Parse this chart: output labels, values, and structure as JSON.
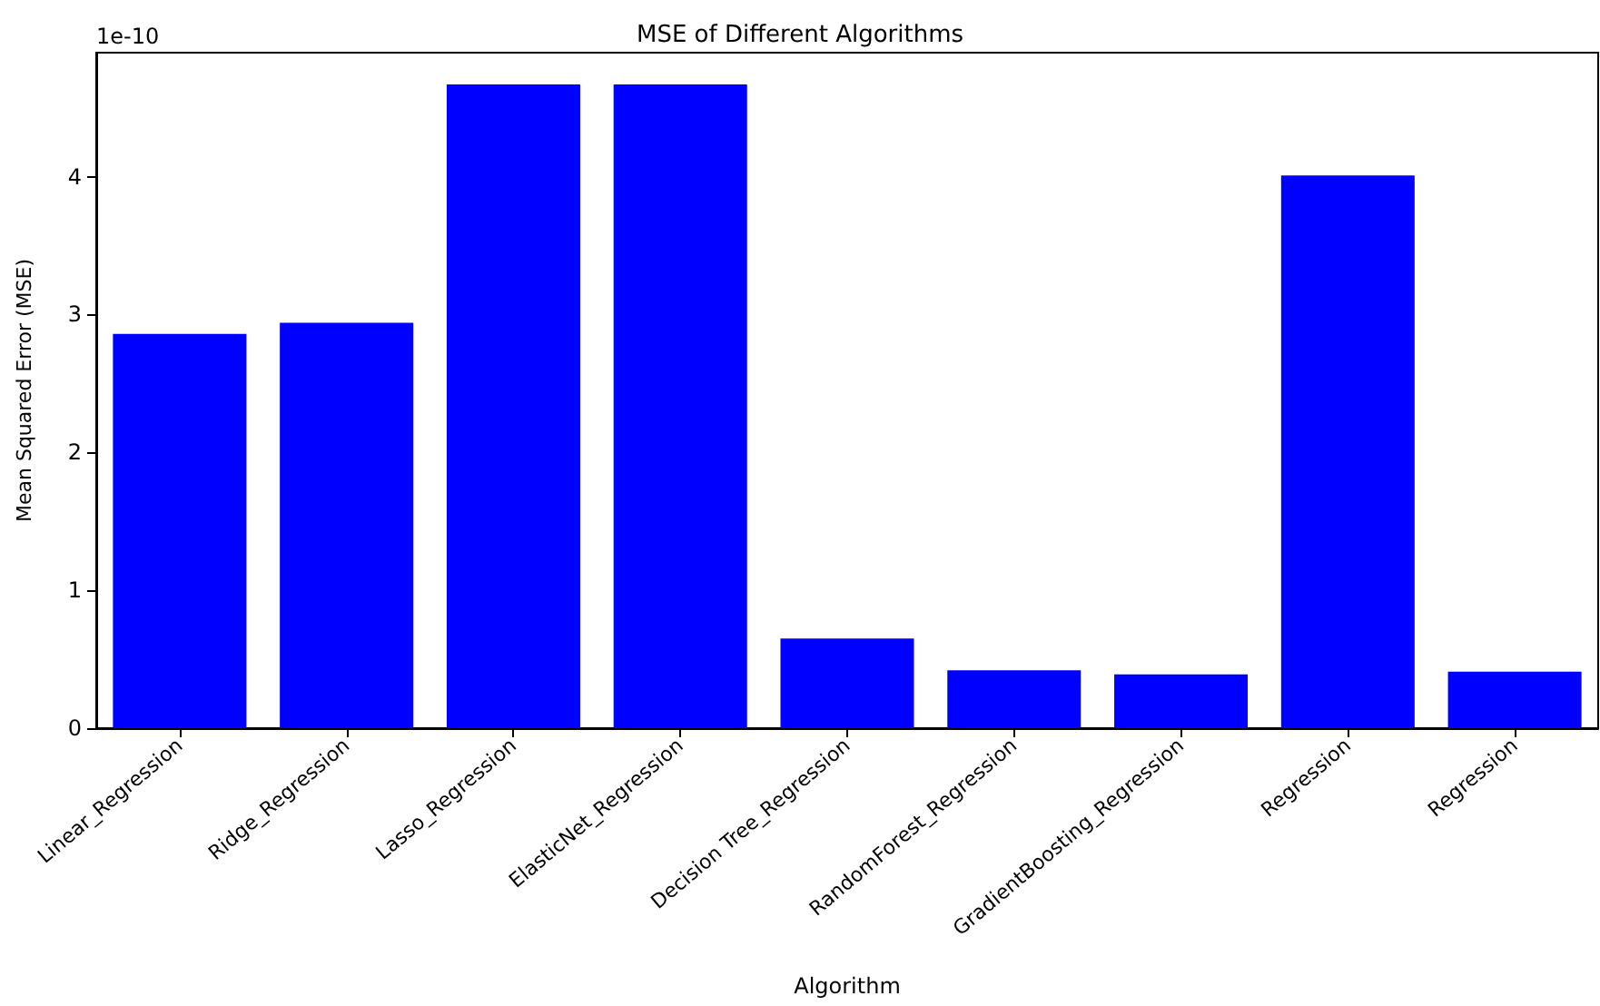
{
  "chart_data": {
    "type": "bar",
    "title": "MSE of Different Algorithms",
    "xlabel": "Algorithm",
    "ylabel": "Mean Squared Error (MSE)",
    "annotations": [
      "1e-10"
    ],
    "categories": [
      "Linear_Regression",
      "Ridge_Regression",
      "Lasso_Regression",
      "ElasticNet_Regression",
      "Decision Tree_Regression",
      "RandomForest_Regression",
      "GradientBoosting_Regression",
      "Regression",
      "Regression"
    ],
    "values": [
      2.86,
      2.94,
      4.67,
      4.67,
      0.65,
      0.42,
      0.39,
      4.01,
      0.41
    ],
    "color": "#0000ff",
    "ylim": [
      0,
      4.9
    ],
    "yticks": [
      0,
      1,
      2,
      3,
      4
    ],
    "grid": false
  }
}
